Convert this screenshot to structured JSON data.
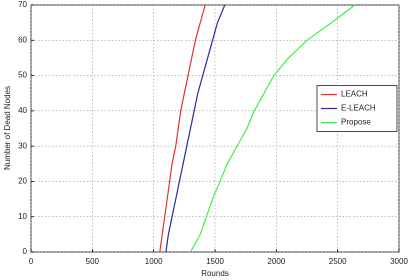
{
  "chart_data": {
    "type": "line",
    "x_label": "Rounds",
    "y_label": "Number of Dead Nodes",
    "xlim": [
      0,
      3000
    ],
    "xticks": [
      0,
      500,
      1000,
      1500,
      2000,
      2500,
      3000
    ],
    "ylim": [
      0,
      70
    ],
    "yticks": [
      0,
      10,
      20,
      30,
      40,
      50,
      60,
      70
    ],
    "grid": true,
    "legend": "east",
    "series": [
      {
        "name": "LEACH",
        "color": "#dd3333",
        "x": [
          1050,
          1070,
          1090,
          1110,
          1130,
          1150,
          1180,
          1200,
          1220,
          1250,
          1280,
          1310,
          1340,
          1380,
          1420
        ],
        "values": [
          0,
          5,
          10,
          15,
          20,
          25,
          30,
          35,
          40,
          45,
          50,
          55,
          60,
          65,
          70
        ]
      },
      {
        "name": "E-LEACH",
        "color": "#2a2a9a",
        "x": [
          1100,
          1120,
          1150,
          1180,
          1210,
          1240,
          1270,
          1300,
          1330,
          1360,
          1400,
          1440,
          1480,
          1520,
          1580
        ],
        "values": [
          0,
          5,
          10,
          15,
          20,
          25,
          30,
          35,
          40,
          45,
          50,
          55,
          60,
          65,
          70
        ]
      },
      {
        "name": "Propose",
        "color": "#44ee44",
        "x": [
          1300,
          1380,
          1430,
          1480,
          1540,
          1600,
          1680,
          1760,
          1820,
          1900,
          1980,
          2100,
          2250,
          2450,
          2640
        ],
        "values": [
          0,
          5,
          10,
          15,
          20,
          25,
          30,
          35,
          40,
          45,
          50,
          55,
          60,
          65,
          70
        ]
      }
    ]
  }
}
